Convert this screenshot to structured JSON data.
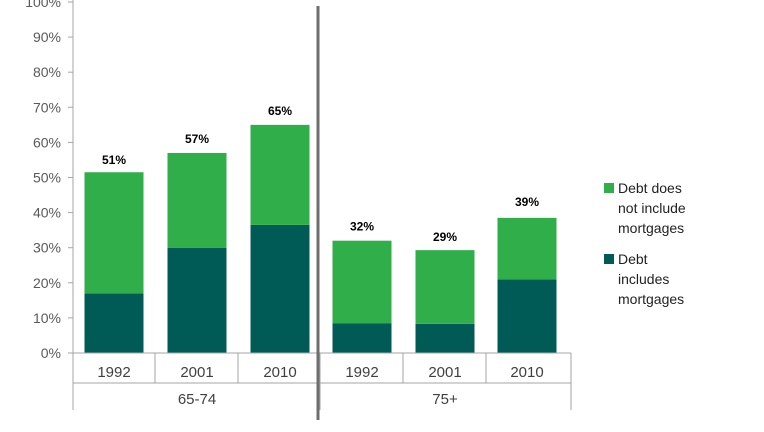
{
  "chart_data": {
    "type": "bar",
    "stacked": true,
    "ylim": [
      0,
      100
    ],
    "yticks": [
      "0%",
      "10%",
      "20%",
      "30%",
      "40%",
      "50%",
      "60%",
      "70%",
      "80%",
      "90%",
      "100%"
    ],
    "groups": [
      {
        "label": "65-74",
        "categories": [
          "1992",
          "2001",
          "2010"
        ]
      },
      {
        "label": "75+",
        "categories": [
          "1992",
          "2001",
          "2010"
        ]
      }
    ],
    "categories": [
      "1992",
      "2001",
      "2010",
      "1992",
      "2001",
      "2010"
    ],
    "series": [
      {
        "name": "Debt includes mortgages",
        "color": "#005b57",
        "values": [
          17,
          30,
          36.5,
          8.5,
          8.3,
          21
        ]
      },
      {
        "name": "Debt does not include mortgages",
        "color": "#2fae4a",
        "values": [
          34.5,
          27,
          28.5,
          23.5,
          21,
          17.5
        ]
      }
    ],
    "totals": [
      51,
      57,
      65,
      32,
      29,
      39
    ],
    "total_labels": [
      "51%",
      "57%",
      "65%",
      "32%",
      "29%",
      "39%"
    ],
    "legend": {
      "position": "right",
      "items": [
        {
          "label_lines": [
            "Debt does",
            "not include",
            "mortgages"
          ],
          "color": "#2fae4a"
        },
        {
          "label_lines": [
            "Debt",
            "includes",
            "mortgages"
          ],
          "color": "#005b57"
        }
      ]
    },
    "grid": false
  }
}
